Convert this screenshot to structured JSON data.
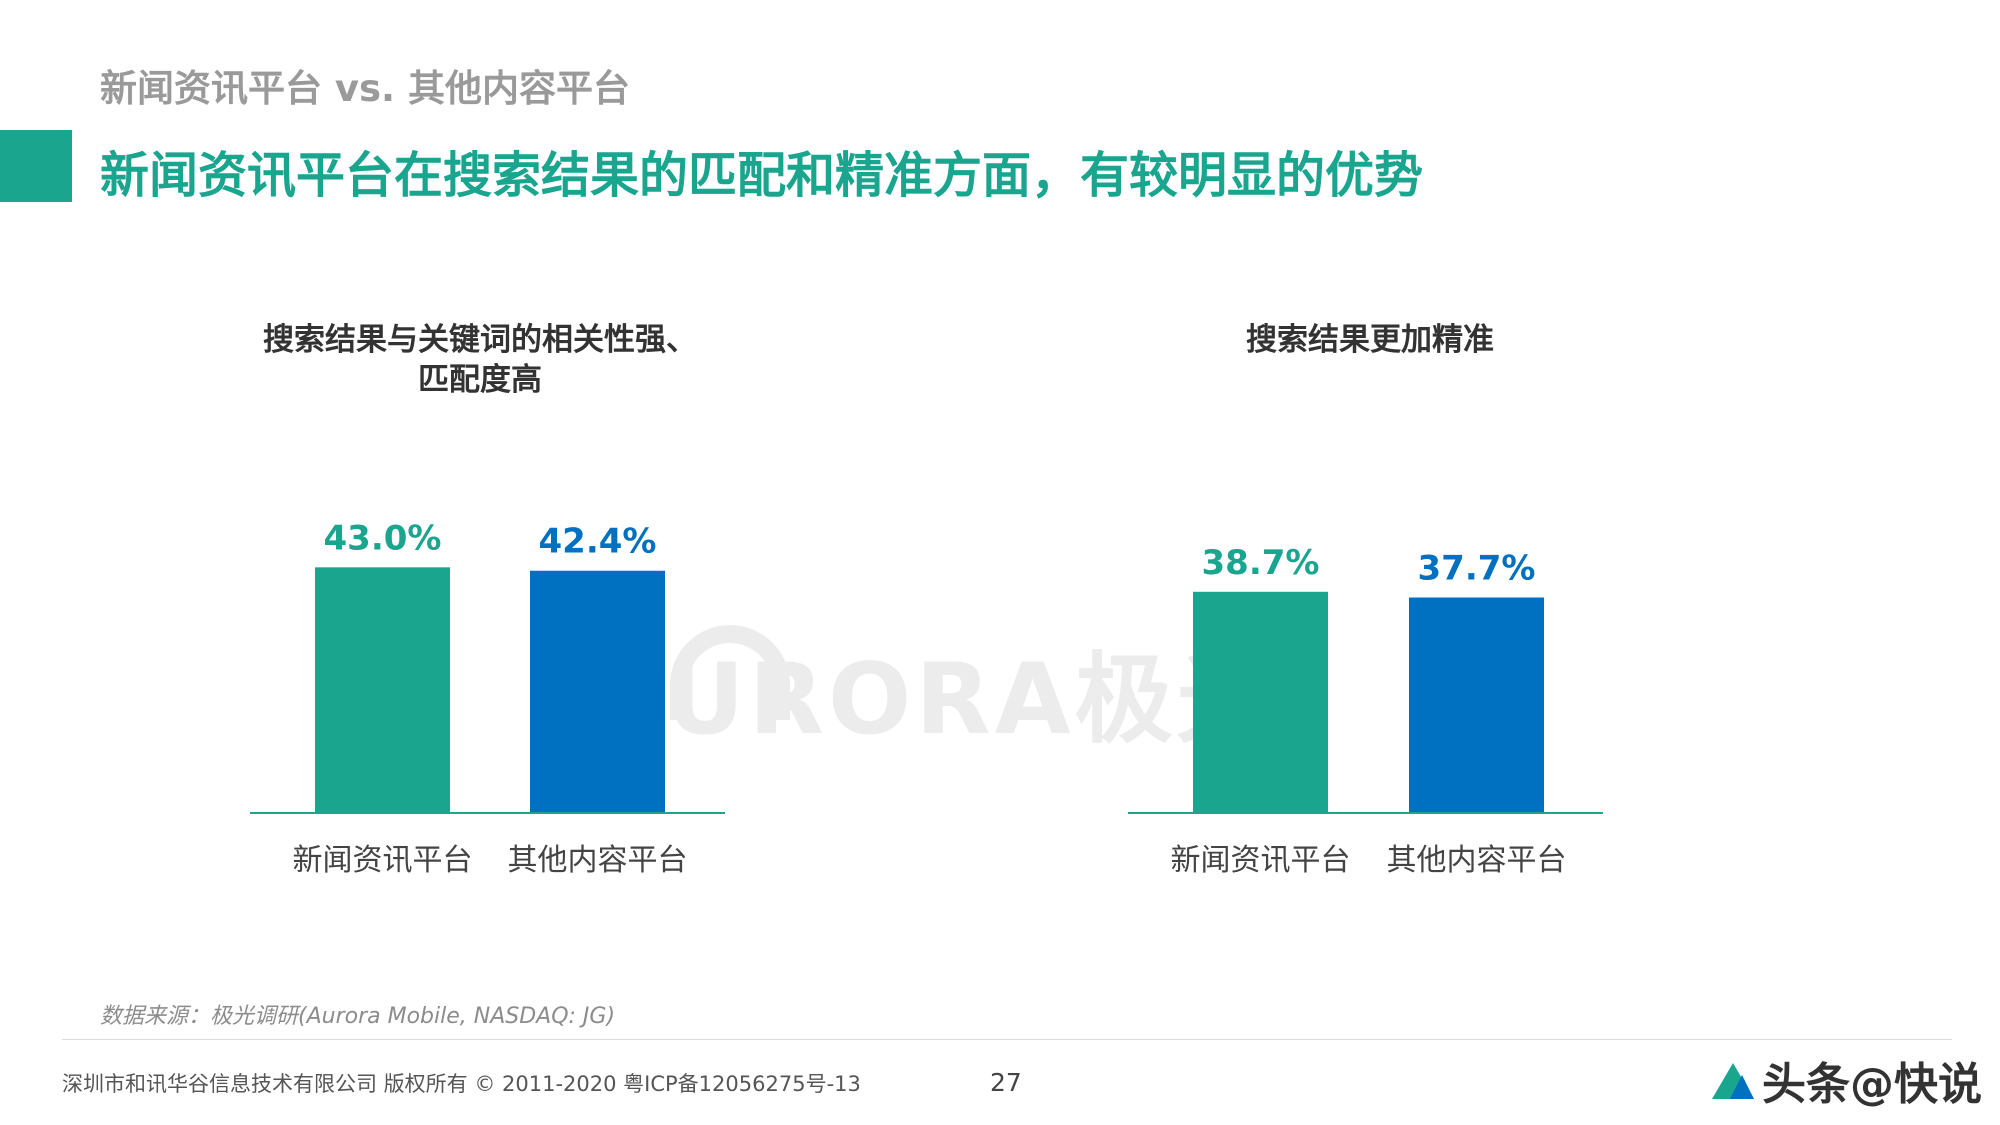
{
  "page": {
    "subtitle": "新闻资讯平台 vs. 其他内容平台",
    "headline": "新闻资讯平台在搜索结果的匹配和精准方面，有较明显的优势",
    "watermark": "URORA极光",
    "source": "数据来源：极光调研(Aurora Mobile, NASDAQ: JG)",
    "footer": "深圳市和讯华谷信息技术有限公司 版权所有 © 2011-2020 粤ICP备12056275号-13",
    "page_number": "27",
    "brand": "头条@快说"
  },
  "colors": {
    "accent": "#1aa58f",
    "secondary": "#0070c0",
    "axis": "#1aa58f"
  },
  "chart_data": [
    {
      "type": "bar",
      "title_lines": [
        "搜索结果与关键词的相关性强、",
        "匹配度高"
      ],
      "categories": [
        "新闻资讯平台",
        "其他内容平台"
      ],
      "values": [
        43.0,
        42.4
      ],
      "value_labels": [
        "43.0%",
        "42.4%"
      ],
      "unit": "%",
      "colors": [
        "#1aa58f",
        "#0070c0"
      ],
      "ylim": [
        0,
        50
      ],
      "grid": false,
      "legend": "none"
    },
    {
      "type": "bar",
      "title_lines": [
        "搜索结果更加精准"
      ],
      "categories": [
        "新闻资讯平台",
        "其他内容平台"
      ],
      "values": [
        38.7,
        37.7
      ],
      "value_labels": [
        "38.7%",
        "37.7%"
      ],
      "unit": "%",
      "colors": [
        "#1aa58f",
        "#0070c0"
      ],
      "ylim": [
        0,
        50
      ],
      "grid": false,
      "legend": "none"
    }
  ]
}
